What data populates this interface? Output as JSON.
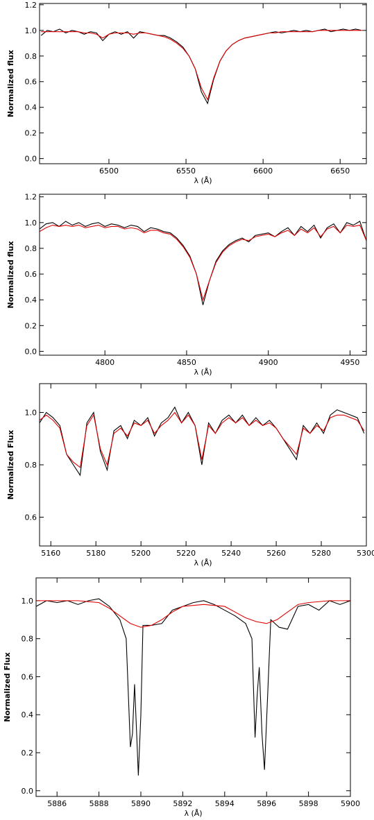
{
  "chart_data": [
    {
      "type": "line",
      "x_label": "λ (Å)",
      "y_label": "Normalized flux",
      "xlim": [
        6455,
        6667
      ],
      "ylim": [
        -0.04,
        1.21
      ],
      "xticks": [
        6500,
        6550,
        6600,
        6650
      ],
      "yticks": [
        {
          "value": 0,
          "label": "0.0"
        },
        0.2,
        0.4,
        0.6,
        0.8,
        {
          "value": 1,
          "label": "1.0"
        },
        {
          "value": 1.2,
          "label": "1.2"
        }
      ],
      "x": [
        6456,
        6460,
        6464,
        6468,
        6472,
        6476,
        6480,
        6484,
        6488,
        6492,
        6496,
        6500,
        6504,
        6508,
        6512,
        6516,
        6520,
        6524,
        6528,
        6532,
        6536,
        6540,
        6544,
        6548,
        6552,
        6556,
        6560,
        6564,
        6568,
        6572,
        6576,
        6580,
        6584,
        6588,
        6592,
        6596,
        6600,
        6604,
        6608,
        6612,
        6616,
        6620,
        6624,
        6628,
        6632,
        6636,
        6640,
        6644,
        6648,
        6652,
        6656,
        6660,
        6664
      ],
      "series": [
        {
          "color": "#000000",
          "values": [
            0.96,
            1.0,
            0.99,
            1.01,
            0.98,
            1.0,
            0.99,
            0.97,
            0.99,
            0.98,
            0.92,
            0.97,
            0.99,
            0.97,
            0.99,
            0.94,
            0.99,
            0.98,
            0.97,
            0.96,
            0.96,
            0.94,
            0.91,
            0.87,
            0.8,
            0.7,
            0.52,
            0.43,
            0.62,
            0.76,
            0.84,
            0.89,
            0.92,
            0.94,
            0.95,
            0.96,
            0.97,
            0.98,
            0.99,
            0.98,
            0.99,
            1.0,
            0.99,
            1.0,
            0.99,
            1.0,
            1.01,
            0.99,
            1.0,
            1.01,
            1.0,
            1.01,
            1.0
          ]
        },
        {
          "color": "#e00000",
          "values": [
            0.99,
            0.99,
            0.99,
            0.99,
            0.99,
            0.99,
            0.99,
            0.98,
            0.98,
            0.97,
            0.94,
            0.97,
            0.98,
            0.98,
            0.98,
            0.97,
            0.98,
            0.98,
            0.97,
            0.96,
            0.95,
            0.93,
            0.9,
            0.86,
            0.8,
            0.7,
            0.55,
            0.46,
            0.63,
            0.76,
            0.84,
            0.89,
            0.92,
            0.94,
            0.95,
            0.96,
            0.97,
            0.98,
            0.98,
            0.99,
            0.99,
            0.99,
            0.99,
            0.99,
            0.99,
            1.0,
            1.0,
            1.0,
            1.0,
            1.0,
            1.0,
            1.0,
            1.0
          ]
        }
      ]
    },
    {
      "type": "line",
      "x_label": "λ (Å)",
      "y_label": "Normalized flux",
      "xlim": [
        4760,
        4960
      ],
      "ylim": [
        -0.03,
        1.22
      ],
      "xticks": [
        4800,
        4850,
        4900,
        4950
      ],
      "yticks": [
        {
          "value": 0,
          "label": "0.0"
        },
        0.2,
        0.4,
        0.6,
        0.8,
        {
          "value": 1,
          "label": "1.0"
        },
        {
          "value": 1.2,
          "label": "1.2"
        }
      ],
      "x": [
        4760,
        4764,
        4768,
        4772,
        4776,
        4780,
        4784,
        4788,
        4792,
        4796,
        4800,
        4804,
        4808,
        4812,
        4816,
        4820,
        4824,
        4828,
        4832,
        4836,
        4840,
        4844,
        4848,
        4852,
        4856,
        4860,
        4864,
        4868,
        4872,
        4876,
        4880,
        4884,
        4888,
        4892,
        4896,
        4900,
        4904,
        4908,
        4912,
        4916,
        4920,
        4924,
        4928,
        4932,
        4936,
        4940,
        4944,
        4948,
        4952,
        4956,
        4960
      ],
      "series": [
        {
          "color": "#000000",
          "values": [
            0.95,
            0.99,
            1.0,
            0.97,
            1.01,
            0.98,
            1.0,
            0.97,
            0.99,
            1.0,
            0.97,
            0.99,
            0.98,
            0.96,
            0.98,
            0.97,
            0.93,
            0.96,
            0.95,
            0.93,
            0.92,
            0.88,
            0.82,
            0.74,
            0.6,
            0.36,
            0.55,
            0.7,
            0.78,
            0.83,
            0.86,
            0.88,
            0.85,
            0.9,
            0.91,
            0.92,
            0.89,
            0.93,
            0.96,
            0.9,
            0.97,
            0.93,
            0.98,
            0.88,
            0.96,
            0.99,
            0.92,
            1.0,
            0.98,
            1.01,
            0.86
          ]
        },
        {
          "color": "#e00000",
          "values": [
            0.93,
            0.96,
            0.98,
            0.97,
            0.98,
            0.97,
            0.98,
            0.96,
            0.97,
            0.98,
            0.96,
            0.97,
            0.97,
            0.95,
            0.96,
            0.95,
            0.92,
            0.94,
            0.94,
            0.92,
            0.91,
            0.87,
            0.81,
            0.73,
            0.6,
            0.4,
            0.55,
            0.69,
            0.77,
            0.82,
            0.85,
            0.87,
            0.86,
            0.89,
            0.9,
            0.91,
            0.89,
            0.92,
            0.94,
            0.9,
            0.95,
            0.92,
            0.96,
            0.89,
            0.95,
            0.97,
            0.92,
            0.98,
            0.97,
            0.98,
            0.86
          ]
        }
      ]
    },
    {
      "type": "line",
      "x_label": "λ (Å)",
      "y_label": "Normalized Flux",
      "xlim": [
        5155,
        5300
      ],
      "ylim": [
        0.49,
        1.11
      ],
      "xticks": [
        5160,
        5180,
        5200,
        5220,
        5240,
        5260,
        5280,
        5300
      ],
      "yticks": [
        0.6,
        0.8,
        {
          "value": 1,
          "label": "1.0"
        }
      ],
      "x": [
        5155,
        5158,
        5161,
        5164,
        5167,
        5170,
        5173,
        5176,
        5179,
        5182,
        5185,
        5188,
        5191,
        5194,
        5197,
        5200,
        5203,
        5206,
        5209,
        5212,
        5215,
        5218,
        5221,
        5224,
        5227,
        5230,
        5233,
        5236,
        5239,
        5242,
        5245,
        5248,
        5251,
        5254,
        5257,
        5260,
        5263,
        5266,
        5269,
        5272,
        5275,
        5278,
        5281,
        5284,
        5287,
        5290,
        5293,
        5296,
        5299
      ],
      "series": [
        {
          "color": "#000000",
          "values": [
            0.96,
            1.0,
            0.98,
            0.95,
            0.84,
            0.8,
            0.76,
            0.96,
            1.0,
            0.85,
            0.78,
            0.93,
            0.95,
            0.9,
            0.97,
            0.95,
            0.98,
            0.91,
            0.96,
            0.98,
            1.02,
            0.96,
            1.0,
            0.95,
            0.8,
            0.96,
            0.92,
            0.97,
            0.99,
            0.96,
            0.99,
            0.95,
            0.98,
            0.95,
            0.97,
            0.94,
            0.9,
            0.86,
            0.82,
            0.95,
            0.92,
            0.96,
            0.92,
            0.99,
            1.01,
            1.0,
            0.99,
            0.98,
            0.92
          ]
        },
        {
          "color": "#e00000",
          "values": [
            0.97,
            0.99,
            0.97,
            0.94,
            0.84,
            0.81,
            0.79,
            0.95,
            0.99,
            0.86,
            0.8,
            0.92,
            0.94,
            0.91,
            0.96,
            0.95,
            0.97,
            0.92,
            0.95,
            0.97,
            1.0,
            0.96,
            0.99,
            0.95,
            0.82,
            0.95,
            0.92,
            0.96,
            0.98,
            0.96,
            0.98,
            0.95,
            0.97,
            0.95,
            0.96,
            0.94,
            0.9,
            0.87,
            0.84,
            0.94,
            0.92,
            0.95,
            0.93,
            0.98,
            0.99,
            0.99,
            0.98,
            0.97,
            0.93
          ]
        }
      ]
    },
    {
      "type": "line",
      "x_label": "λ (Å)",
      "y_label": "Normalized Flux",
      "xlim": [
        5885,
        5900
      ],
      "ylim": [
        -0.03,
        1.12
      ],
      "xticks": [
        5886,
        5888,
        5890,
        5892,
        5894,
        5896,
        5898,
        5900
      ],
      "yticks": [
        {
          "value": 0,
          "label": "0.0"
        },
        0.2,
        0.4,
        0.6,
        0.8,
        {
          "value": 1,
          "label": "1.0"
        }
      ],
      "series": [
        {
          "color": "#000000",
          "x": [
            5885,
            5885.5,
            5886,
            5886.5,
            5887,
            5887.5,
            5888,
            5888.5,
            5889,
            5889.3,
            5889.5,
            5889.6,
            5889.7,
            5889.8,
            5889.88,
            5890,
            5890.1,
            5890.5,
            5891,
            5891.5,
            5892,
            5892.5,
            5893,
            5893.5,
            5894,
            5894.5,
            5895,
            5895.3,
            5895.45,
            5895.55,
            5895.65,
            5895.78,
            5895.9,
            5896.05,
            5896.2,
            5896.6,
            5897,
            5897.5,
            5898,
            5898.5,
            5899,
            5899.5,
            5900
          ],
          "values": [
            0.97,
            1.0,
            0.99,
            1.0,
            0.98,
            1.0,
            1.01,
            0.97,
            0.9,
            0.8,
            0.23,
            0.3,
            0.56,
            0.3,
            0.08,
            0.4,
            0.87,
            0.87,
            0.88,
            0.95,
            0.97,
            0.99,
            1.0,
            0.98,
            0.95,
            0.92,
            0.88,
            0.8,
            0.28,
            0.5,
            0.65,
            0.3,
            0.11,
            0.5,
            0.9,
            0.86,
            0.85,
            0.97,
            0.98,
            0.95,
            1.0,
            0.98,
            1.0
          ]
        },
        {
          "color": "#e00000",
          "x": [
            5885,
            5886,
            5887,
            5888,
            5888.5,
            5889,
            5889.5,
            5890,
            5890.5,
            5891,
            5891.5,
            5892,
            5893,
            5894,
            5894.5,
            5895,
            5895.5,
            5896,
            5896.5,
            5897,
            5897.5,
            5898,
            5899,
            5900
          ],
          "values": [
            1.0,
            1.0,
            1.0,
            0.99,
            0.96,
            0.92,
            0.88,
            0.86,
            0.87,
            0.9,
            0.94,
            0.97,
            0.98,
            0.97,
            0.94,
            0.91,
            0.89,
            0.88,
            0.9,
            0.94,
            0.98,
            0.99,
            1.0,
            1.0
          ]
        }
      ]
    }
  ]
}
